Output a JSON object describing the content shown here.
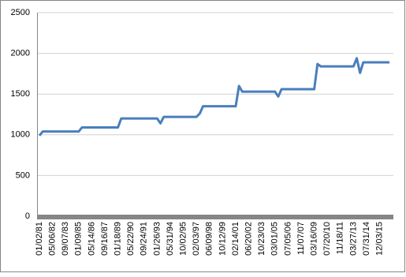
{
  "chart_data": {
    "type": "line",
    "categories": [
      "01/02/81",
      null,
      null,
      null,
      "05/06/82",
      null,
      null,
      null,
      "09/07/83",
      null,
      null,
      null,
      "01/09/85",
      null,
      null,
      null,
      "05/14/86",
      null,
      null,
      null,
      "09/16/87",
      null,
      null,
      null,
      "01/18/89",
      null,
      null,
      null,
      "05/22/90",
      null,
      null,
      null,
      "09/24/91",
      null,
      null,
      null,
      "01/26/93",
      null,
      null,
      null,
      "05/31/94",
      null,
      null,
      null,
      "10/02/95",
      null,
      null,
      null,
      "02/03/97",
      null,
      null,
      null,
      "06/09/98",
      null,
      null,
      null,
      "10/12/99",
      null,
      null,
      null,
      "02/14/01",
      null,
      null,
      null,
      "06/20/02",
      null,
      null,
      null,
      "10/23/03",
      null,
      null,
      null,
      "03/01/05",
      null,
      null,
      null,
      "07/05/06",
      null,
      null,
      null,
      "11/07/07",
      null,
      null,
      null,
      "03/16/09",
      null,
      null,
      null,
      "07/20/10",
      null,
      null,
      null,
      "11/18/11",
      null,
      null,
      null,
      "03/27/13",
      null,
      null,
      null,
      "07/31/14",
      null,
      null,
      null,
      "12/03/15",
      null,
      null,
      null
    ],
    "values": [
      990,
      1040,
      1040,
      1040,
      1040,
      1040,
      1040,
      1040,
      1040,
      1040,
      1040,
      1040,
      1040,
      1090,
      1090,
      1090,
      1090,
      1090,
      1090,
      1090,
      1090,
      1090,
      1090,
      1090,
      1090,
      1200,
      1200,
      1200,
      1200,
      1200,
      1200,
      1200,
      1200,
      1200,
      1200,
      1200,
      1200,
      1140,
      1220,
      1220,
      1220,
      1220,
      1220,
      1220,
      1220,
      1220,
      1220,
      1220,
      1220,
      1260,
      1350,
      1350,
      1350,
      1350,
      1350,
      1350,
      1350,
      1350,
      1350,
      1350,
      1350,
      1600,
      1530,
      1530,
      1530,
      1530,
      1530,
      1530,
      1530,
      1530,
      1530,
      1530,
      1530,
      1470,
      1560,
      1560,
      1560,
      1560,
      1560,
      1560,
      1560,
      1560,
      1560,
      1560,
      1560,
      1870,
      1840,
      1840,
      1840,
      1840,
      1840,
      1840,
      1840,
      1840,
      1840,
      1840,
      1840,
      1940,
      1760,
      1890,
      1890,
      1890,
      1890,
      1890,
      1890,
      1890,
      1890,
      1890
    ],
    "color": "#4a7ebb",
    "ylim": [
      0,
      2500
    ],
    "yticks": [
      0,
      500,
      1000,
      1500,
      2000,
      2500
    ],
    "grid": true
  }
}
